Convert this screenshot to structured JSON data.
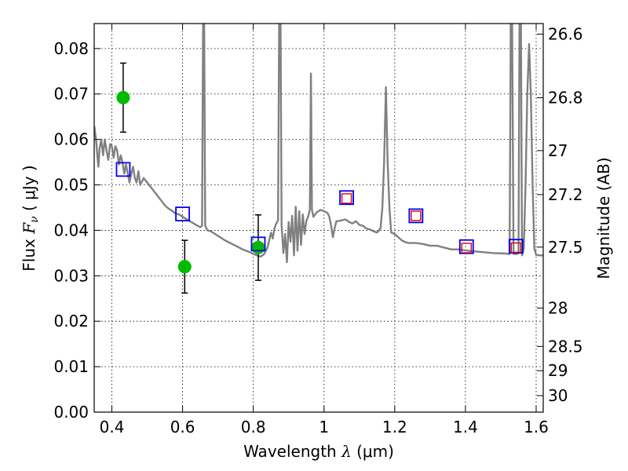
{
  "chart_data": {
    "type": "line",
    "xlabel": "Wavelength",
    "xlabel_symbol": "λ",
    "xlabel_unit": "(μm)",
    "ylabel": "Flux",
    "ylabel_symbol": "F",
    "ylabel_subscript": "ν",
    "ylabel_unit": "( μJy )",
    "y2label": "Magnitude (AB)",
    "xlim": [
      0.35,
      1.62
    ],
    "ylim": [
      0.0,
      0.0855
    ],
    "grid": true,
    "x_ticks": [
      0.4,
      0.6,
      0.8,
      1.0,
      1.2,
      1.4,
      1.6
    ],
    "x_tick_labels": [
      "0.4",
      "0.6",
      "0.8",
      "1",
      "1.2",
      "1.4",
      "1.6"
    ],
    "y_ticks": [
      0.0,
      0.01,
      0.02,
      0.03,
      0.04,
      0.05,
      0.06,
      0.07,
      0.08
    ],
    "y_tick_labels": [
      "0.00",
      "0.01",
      "0.02",
      "0.03",
      "0.04",
      "0.05",
      "0.06",
      "0.07",
      "0.08"
    ],
    "y2_ticks": [
      26.6,
      26.8,
      27,
      27.2,
      27.5,
      28,
      28.5,
      29,
      30
    ],
    "y2_tick_labels": [
      "26.6",
      "26.8",
      "27",
      "27.2",
      "27.5",
      "28",
      "28.5",
      "29",
      "30"
    ],
    "series": [
      {
        "kind": "spectrum",
        "color": "#808080",
        "points": [
          [
            0.35,
            0.063
          ],
          [
            0.355,
            0.06
          ],
          [
            0.36,
            0.0555
          ],
          [
            0.362,
            0.054
          ],
          [
            0.365,
            0.058
          ],
          [
            0.37,
            0.06
          ],
          [
            0.375,
            0.0565
          ],
          [
            0.38,
            0.06
          ],
          [
            0.385,
            0.0575
          ],
          [
            0.39,
            0.0555
          ],
          [
            0.395,
            0.059
          ],
          [
            0.4,
            0.0585
          ],
          [
            0.405,
            0.056
          ],
          [
            0.41,
            0.0585
          ],
          [
            0.415,
            0.0575
          ],
          [
            0.42,
            0.0545
          ],
          [
            0.425,
            0.0565
          ],
          [
            0.43,
            0.055
          ],
          [
            0.435,
            0.0525
          ],
          [
            0.44,
            0.0545
          ],
          [
            0.445,
            0.0525
          ],
          [
            0.45,
            0.0505
          ],
          [
            0.455,
            0.0525
          ],
          [
            0.46,
            0.054
          ],
          [
            0.465,
            0.0515
          ],
          [
            0.47,
            0.0505
          ],
          [
            0.475,
            0.053
          ],
          [
            0.48,
            0.05
          ],
          [
            0.49,
            0.0515
          ],
          [
            0.5,
            0.0505
          ],
          [
            0.51,
            0.0495
          ],
          [
            0.52,
            0.0485
          ],
          [
            0.53,
            0.0475
          ],
          [
            0.54,
            0.0465
          ],
          [
            0.55,
            0.0455
          ],
          [
            0.56,
            0.0448
          ],
          [
            0.57,
            0.0443
          ],
          [
            0.58,
            0.0437
          ],
          [
            0.59,
            0.0435
          ],
          [
            0.6,
            0.043
          ],
          [
            0.61,
            0.0425
          ],
          [
            0.62,
            0.042
          ],
          [
            0.63,
            0.0416
          ],
          [
            0.64,
            0.0411
          ],
          [
            0.65,
            0.0407
          ],
          [
            0.655,
            0.041
          ],
          [
            0.658,
            0.0855
          ],
          [
            0.661,
            0.0855
          ],
          [
            0.664,
            0.041
          ],
          [
            0.67,
            0.04
          ],
          [
            0.68,
            0.0398
          ],
          [
            0.69,
            0.0393
          ],
          [
            0.7,
            0.0388
          ],
          [
            0.71,
            0.0383
          ],
          [
            0.72,
            0.0378
          ],
          [
            0.73,
            0.0374
          ],
          [
            0.74,
            0.037
          ],
          [
            0.75,
            0.0366
          ],
          [
            0.76,
            0.0362
          ],
          [
            0.77,
            0.0358
          ],
          [
            0.78,
            0.0355
          ],
          [
            0.79,
            0.0352
          ],
          [
            0.8,
            0.0348
          ],
          [
            0.81,
            0.0345
          ],
          [
            0.82,
            0.0342
          ],
          [
            0.83,
            0.0347
          ],
          [
            0.84,
            0.0362
          ],
          [
            0.845,
            0.0378
          ],
          [
            0.85,
            0.0395
          ],
          [
            0.855,
            0.0382
          ],
          [
            0.86,
            0.0405
          ],
          [
            0.865,
            0.0415
          ],
          [
            0.87,
            0.0422
          ],
          [
            0.873,
            0.0855
          ],
          [
            0.877,
            0.0855
          ],
          [
            0.88,
            0.0412
          ],
          [
            0.885,
            0.035
          ],
          [
            0.89,
            0.0392
          ],
          [
            0.895,
            0.033
          ],
          [
            0.9,
            0.0418
          ],
          [
            0.905,
            0.0375
          ],
          [
            0.91,
            0.0432
          ],
          [
            0.915,
            0.0345
          ],
          [
            0.92,
            0.0452
          ],
          [
            0.925,
            0.0355
          ],
          [
            0.93,
            0.0442
          ],
          [
            0.935,
            0.0368
          ],
          [
            0.94,
            0.0435
          ],
          [
            0.945,
            0.0392
          ],
          [
            0.95,
            0.042
          ],
          [
            0.955,
            0.043
          ],
          [
            0.96,
            0.0445
          ],
          [
            0.963,
            0.0745
          ],
          [
            0.966,
            0.0445
          ],
          [
            0.97,
            0.043
          ],
          [
            0.98,
            0.044
          ],
          [
            0.99,
            0.0445
          ],
          [
            1.0,
            0.0442
          ],
          [
            1.01,
            0.0438
          ],
          [
            1.015,
            0.043
          ],
          [
            1.02,
            0.041
          ],
          [
            1.025,
            0.0385
          ],
          [
            1.03,
            0.0405
          ],
          [
            1.035,
            0.042
          ],
          [
            1.045,
            0.0421
          ],
          [
            1.06,
            0.0424
          ],
          [
            1.07,
            0.0419
          ],
          [
            1.08,
            0.0415
          ],
          [
            1.09,
            0.042
          ],
          [
            1.1,
            0.0412
          ],
          [
            1.11,
            0.041
          ],
          [
            1.12,
            0.0404
          ],
          [
            1.13,
            0.0402
          ],
          [
            1.14,
            0.0398
          ],
          [
            1.15,
            0.0395
          ],
          [
            1.16,
            0.0405
          ],
          [
            1.165,
            0.045
          ],
          [
            1.17,
            0.055
          ],
          [
            1.175,
            0.0715
          ],
          [
            1.18,
            0.055
          ],
          [
            1.185,
            0.045
          ],
          [
            1.19,
            0.0395
          ],
          [
            1.2,
            0.0392
          ],
          [
            1.21,
            0.0385
          ],
          [
            1.22,
            0.0378
          ],
          [
            1.23,
            0.0374
          ],
          [
            1.24,
            0.0372
          ],
          [
            1.26,
            0.0372
          ],
          [
            1.28,
            0.037
          ],
          [
            1.3,
            0.0366
          ],
          [
            1.32,
            0.0366
          ],
          [
            1.34,
            0.0362
          ],
          [
            1.36,
            0.0358
          ],
          [
            1.38,
            0.0358
          ],
          [
            1.4,
            0.0356
          ],
          [
            1.42,
            0.0354
          ],
          [
            1.45,
            0.0352
          ],
          [
            1.48,
            0.035
          ],
          [
            1.51,
            0.0349
          ],
          [
            1.525,
            0.0348
          ],
          [
            1.528,
            0.0855
          ],
          [
            1.532,
            0.0855
          ],
          [
            1.536,
            0.0348
          ],
          [
            1.545,
            0.0348
          ],
          [
            1.55,
            0.035
          ],
          [
            1.553,
            0.0855
          ],
          [
            1.557,
            0.0855
          ],
          [
            1.56,
            0.0345
          ],
          [
            1.565,
            0.036
          ],
          [
            1.57,
            0.05
          ],
          [
            1.575,
            0.07
          ],
          [
            1.58,
            0.081
          ],
          [
            1.585,
            0.07
          ],
          [
            1.59,
            0.05
          ],
          [
            1.595,
            0.036
          ],
          [
            1.6,
            0.0346
          ],
          [
            1.61,
            0.0345
          ],
          [
            1.62,
            0.0345
          ]
        ]
      },
      {
        "kind": "measured",
        "marker": "circle",
        "color": "#00bb00",
        "points": [
          {
            "x": 0.432,
            "y": 0.0692,
            "yerr": 0.0076
          },
          {
            "x": 0.606,
            "y": 0.032,
            "yerr": 0.0058
          },
          {
            "x": 0.814,
            "y": 0.0362,
            "yerr": 0.0072
          }
        ]
      },
      {
        "kind": "model_photometry",
        "marker": "square-open",
        "color": "#0000ff",
        "points": [
          {
            "x": 0.432,
            "y": 0.0534
          },
          {
            "x": 0.6,
            "y": 0.0436
          },
          {
            "x": 0.814,
            "y": 0.037
          },
          {
            "x": 1.064,
            "y": 0.0472
          },
          {
            "x": 1.26,
            "y": 0.0432
          },
          {
            "x": 1.403,
            "y": 0.0364
          },
          {
            "x": 1.543,
            "y": 0.0365
          }
        ]
      },
      {
        "kind": "upper_band",
        "marker": "square-open-small",
        "color": "#dd0000",
        "points": [
          {
            "x": 1.064,
            "y": 0.047
          },
          {
            "x": 1.26,
            "y": 0.0432
          },
          {
            "x": 1.403,
            "y": 0.0361
          },
          {
            "x": 1.543,
            "y": 0.0362
          }
        ]
      }
    ]
  }
}
